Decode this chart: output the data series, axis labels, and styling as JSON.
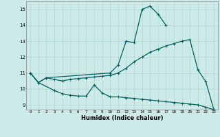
{
  "title": "",
  "xlabel": "Humidex (Indice chaleur)",
  "ylabel": "",
  "bg_color": "#cceae7",
  "grid_color": "#b0d8d4",
  "line_color": "#006060",
  "xlim": [
    -0.5,
    23.5
  ],
  "ylim": [
    8.7,
    15.5
  ],
  "xticks": [
    0,
    1,
    2,
    3,
    4,
    5,
    6,
    7,
    8,
    9,
    10,
    11,
    12,
    13,
    14,
    15,
    16,
    17,
    18,
    19,
    20,
    21,
    22,
    23
  ],
  "yticks": [
    9,
    10,
    11,
    12,
    13,
    14,
    15
  ],
  "line_top_x": [
    0,
    1,
    2,
    3,
    4,
    5,
    6,
    7,
    8,
    9,
    10,
    11,
    12,
    13,
    14,
    15,
    16,
    17,
    18,
    19,
    20,
    21,
    22,
    23
  ],
  "line_top_y": [
    11.0,
    10.4,
    10.7,
    null,
    null,
    null,
    null,
    null,
    null,
    null,
    11.0,
    11.5,
    13.0,
    12.9,
    15.0,
    15.2,
    14.7,
    14.0,
    null,
    null,
    null,
    null,
    null,
    null
  ],
  "line_mid_x": [
    0,
    1,
    2,
    3,
    4,
    5,
    6,
    7,
    8,
    9,
    10,
    11,
    12,
    13,
    14,
    15,
    16,
    17,
    18,
    19,
    20,
    21,
    22,
    23
  ],
  "line_mid_y": [
    11.0,
    10.4,
    10.7,
    10.6,
    10.5,
    10.6,
    10.65,
    10.7,
    10.75,
    10.8,
    10.85,
    11.0,
    11.3,
    11.7,
    12.0,
    12.3,
    12.5,
    12.7,
    12.85,
    13.0,
    13.1,
    11.2,
    10.45,
    8.7
  ],
  "line_bot_x": [
    0,
    1,
    2,
    3,
    4,
    5,
    6,
    7,
    8,
    9,
    10,
    11,
    12,
    13,
    14,
    15,
    16,
    17,
    18,
    19,
    20,
    21,
    22,
    23
  ],
  "line_bot_y": [
    11.0,
    10.4,
    null,
    9.9,
    9.7,
    9.6,
    9.55,
    9.55,
    10.25,
    9.75,
    9.5,
    9.5,
    9.45,
    9.4,
    9.35,
    9.3,
    9.25,
    9.2,
    9.15,
    9.1,
    9.05,
    9.0,
    8.85,
    8.7
  ]
}
